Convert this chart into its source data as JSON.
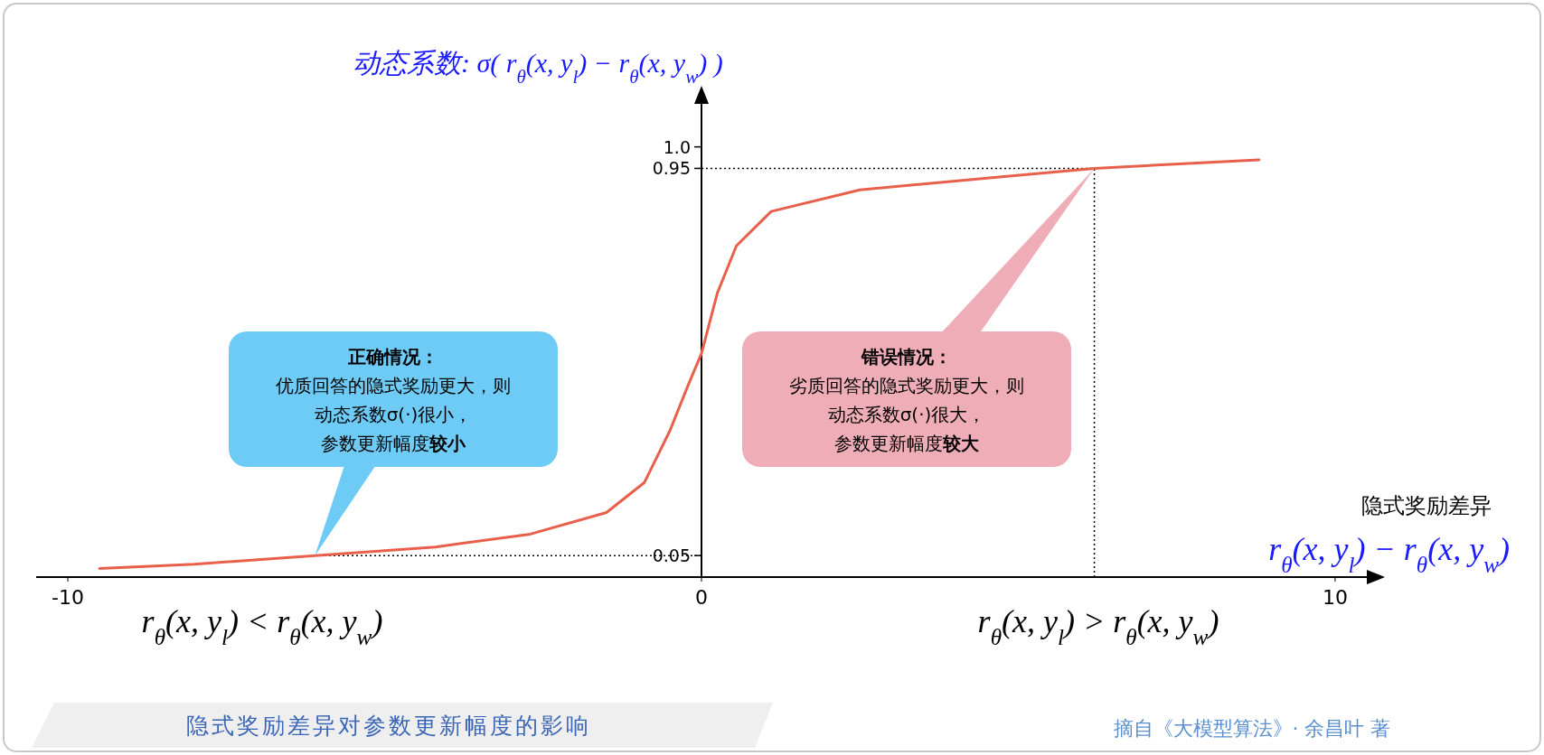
{
  "chart_data": {
    "type": "line",
    "title": "隐式奖励差异对参数更新幅度的影响",
    "ylabel": "动态系数: σ( r$_{θ}$(x, y$_{l}$) − r$_{θ}$(x, y$_{w}$) )",
    "xlabel": "隐式奖励差异\nr$_{θ}$(x, y$_{l}$) − r$_{θ}$(x, y$_{w}$)",
    "x": [
      -9.5,
      -8,
      -6.1,
      -4.2,
      -2.7,
      -1.5,
      -0.9,
      -0.5,
      -0.2,
      0,
      0.25,
      0.55,
      1.1,
      2.5,
      4.7,
      6.2,
      8.8
    ],
    "values": [
      0.02,
      0.03,
      0.05,
      0.07,
      0.1,
      0.15,
      0.22,
      0.34,
      0.45,
      0.52,
      0.66,
      0.77,
      0.85,
      0.9,
      0.93,
      0.95,
      0.97
    ],
    "color": "#e8604c",
    "marker": "none",
    "grid": false,
    "xlim": [
      -10.5,
      10.5
    ],
    "ylim": [
      0,
      1.1
    ],
    "xticks": [
      -10,
      0,
      10
    ],
    "yticks": [
      0.05,
      0.95,
      {
        "value": 1,
        "label": "1.0"
      }
    ],
    "ref_lines": [
      {
        "axis": "y",
        "value": 0.05,
        "line_style": "dotted",
        "color": "#000000"
      },
      {
        "axis": "y",
        "value": 0.95,
        "line_style": "dotted",
        "color": "#000000"
      },
      {
        "axis": "x",
        "value": 6.2,
        "line_style": "dotted",
        "color": "#000000"
      }
    ],
    "annotations": [
      "**正确情况：**",
      "优质回答的隐式奖励更大，则",
      "动态系数σ(·)很小，",
      "参数更新幅度**较小**",
      "**错误情况：**",
      "劣质回答的隐式奖励更大，则",
      "动态系数σ(·)很大，",
      "参数更新幅度**较大**",
      "r$_{θ}$(x, y$_{l}$) < r$_{θ}$(x, y$_{w}$)",
      "r$_{θ}$(x, y$_{l}$) > r$_{θ}$(x, y$_{w}$)",
      "摘自《大模型算法》· 余昌叶 著"
    ]
  }
}
